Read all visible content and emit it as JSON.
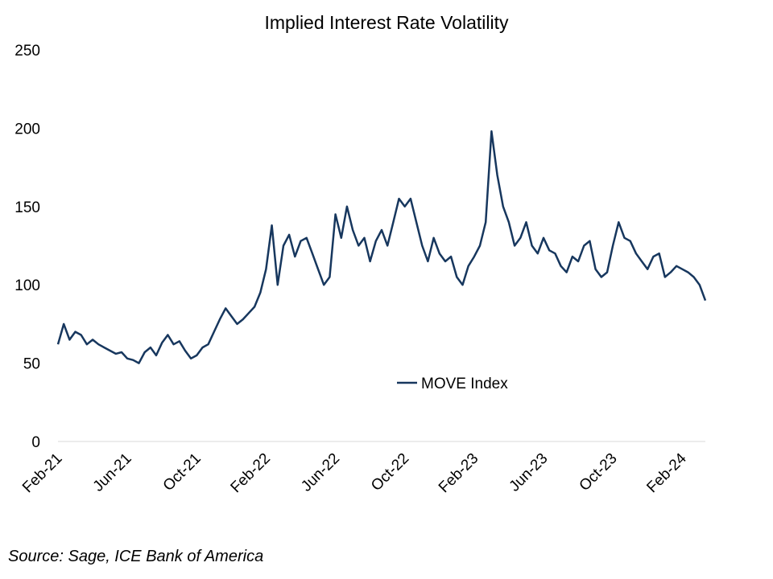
{
  "chart_data": {
    "type": "line",
    "title": "Implied Interest Rate Volatility",
    "source": "Source: Sage, ICE Bank of America",
    "categories": [
      "Feb-21",
      null,
      null,
      null,
      null,
      null,
      null,
      null,
      null,
      null,
      null,
      null,
      "Jun-21",
      null,
      null,
      null,
      null,
      null,
      null,
      null,
      null,
      null,
      null,
      null,
      "Oct-21",
      null,
      null,
      null,
      null,
      null,
      null,
      null,
      null,
      null,
      null,
      null,
      "Feb-22",
      null,
      null,
      null,
      null,
      null,
      null,
      null,
      null,
      null,
      null,
      null,
      "Jun-22",
      null,
      null,
      null,
      null,
      null,
      null,
      null,
      null,
      null,
      null,
      null,
      "Oct-22",
      null,
      null,
      null,
      null,
      null,
      null,
      null,
      null,
      null,
      null,
      null,
      "Feb-23",
      null,
      null,
      null,
      null,
      null,
      null,
      null,
      null,
      null,
      null,
      null,
      "Jun-23",
      null,
      null,
      null,
      null,
      null,
      null,
      null,
      null,
      null,
      null,
      null,
      "Oct-23",
      null,
      null,
      null,
      null,
      null,
      null,
      null,
      null,
      null,
      null,
      null,
      "Feb-24",
      null,
      null,
      null,
      null
    ],
    "series": [
      {
        "name": "MOVE Index",
        "color": "#17375e",
        "values": [
          62,
          75,
          65,
          70,
          68,
          62,
          65,
          62,
          60,
          58,
          56,
          57,
          53,
          52,
          50,
          57,
          60,
          55,
          63,
          68,
          62,
          64,
          58,
          53,
          55,
          60,
          62,
          70,
          78,
          85,
          80,
          75,
          78,
          82,
          86,
          95,
          110,
          138,
          100,
          125,
          132,
          118,
          128,
          130,
          120,
          110,
          100,
          105,
          145,
          130,
          150,
          135,
          125,
          130,
          115,
          128,
          135,
          125,
          140,
          155,
          150,
          155,
          140,
          125,
          115,
          130,
          120,
          115,
          118,
          105,
          100,
          112,
          118,
          125,
          140,
          198,
          170,
          150,
          140,
          125,
          130,
          140,
          125,
          120,
          130,
          122,
          120,
          112,
          108,
          118,
          115,
          125,
          128,
          110,
          105,
          108,
          125,
          140,
          130,
          128,
          120,
          115,
          110,
          118,
          120,
          105,
          108,
          112,
          110,
          108,
          105,
          100,
          90
        ]
      }
    ],
    "ylim": [
      0,
      250
    ],
    "yticks": [
      0,
      50,
      100,
      150,
      200,
      250
    ],
    "grid": false
  }
}
